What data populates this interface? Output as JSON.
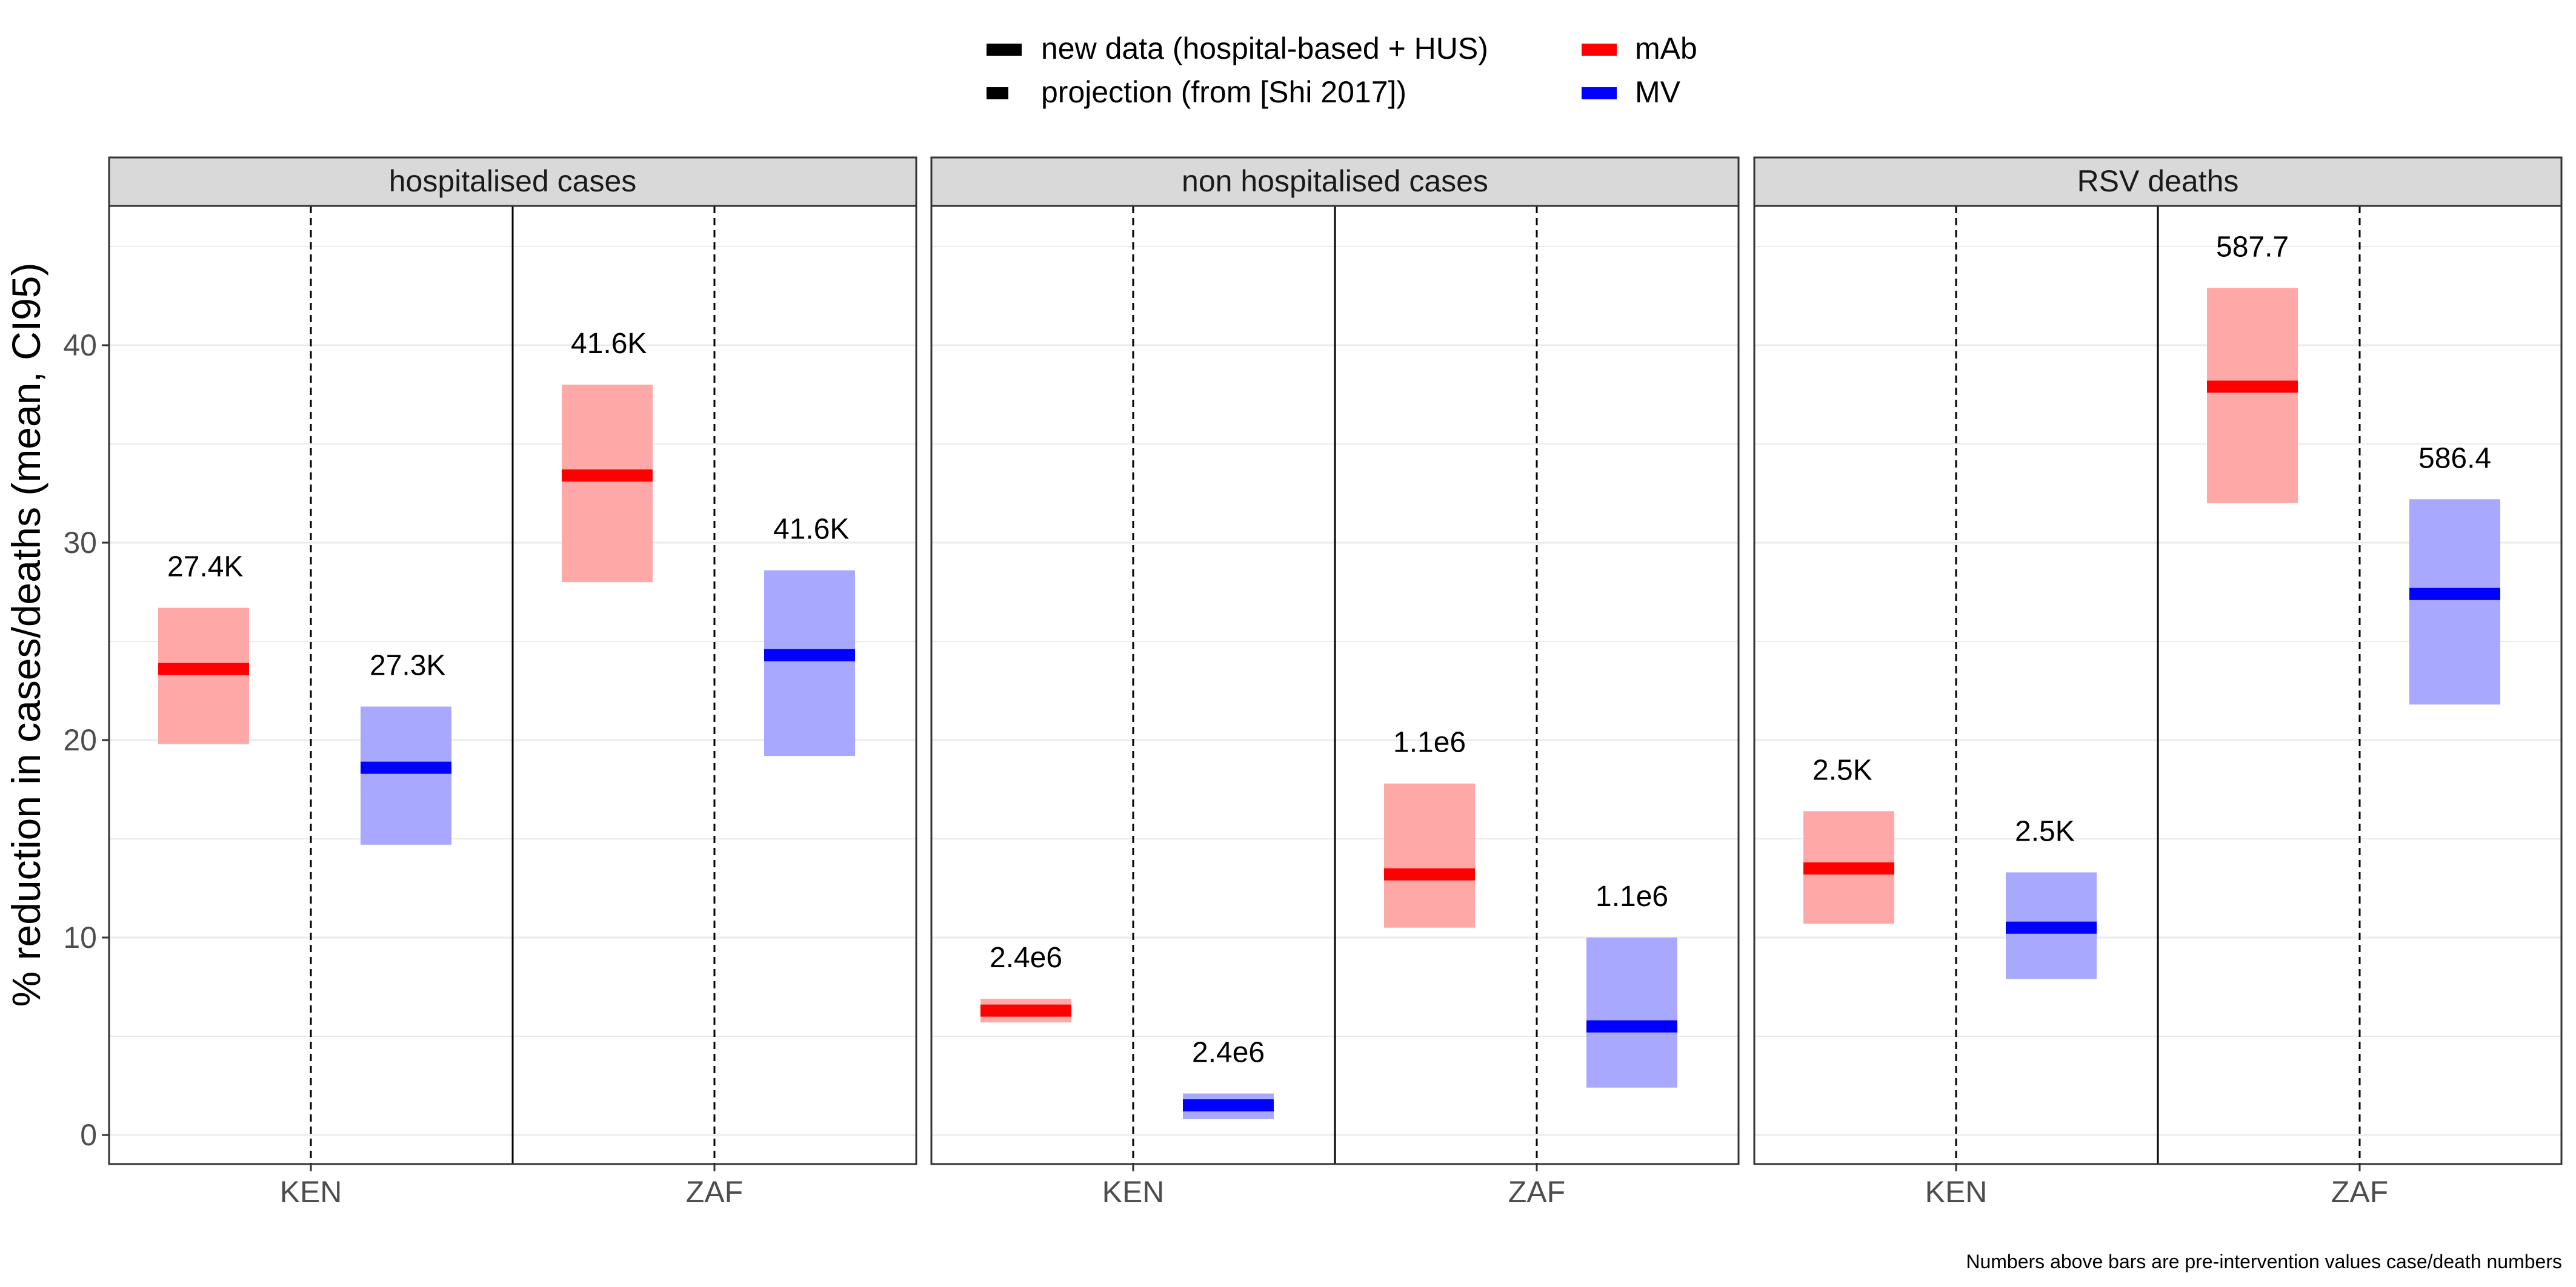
{
  "legend": {
    "entries": [
      {
        "label": "new data (hospital-based + HUS)",
        "swatch": "solid"
      },
      {
        "label": "projection (from [Shi 2017])",
        "swatch": "short"
      },
      {
        "label": "mAb",
        "color": "#ff0000"
      },
      {
        "label": "MV",
        "color": "#0000ff"
      }
    ]
  },
  "footnote": "Numbers above bars are pre-intervention values case/death numbers",
  "colors": {
    "mAb": "#ff0000",
    "mAb_band": "#ffa8a8",
    "MV": "#0000ff",
    "MV_band": "#a8a8ff",
    "panel_header": "#d9d9d9",
    "grid": "#ebebeb"
  },
  "chart_data": {
    "type": "crossbar",
    "ylabel": "% reduction in cases/deaths (mean, CI95)",
    "xlabel": "",
    "ylim": [
      -1.5,
      47.5
    ],
    "yticks": [
      0,
      10,
      20,
      30,
      40
    ],
    "grid": true,
    "categories": [
      "KEN",
      "ZAF"
    ],
    "series_names": [
      "mAb",
      "MV"
    ],
    "panels": [
      {
        "title": "hospitalised cases",
        "bars": [
          {
            "country": "KEN",
            "series": "mAb",
            "mean": 23.6,
            "low": 19.8,
            "high": 26.7,
            "label": "27.4K"
          },
          {
            "country": "KEN",
            "series": "MV",
            "mean": 18.6,
            "low": 14.7,
            "high": 21.7,
            "label": "27.3K"
          },
          {
            "country": "ZAF",
            "series": "mAb",
            "mean": 33.4,
            "low": 28.0,
            "high": 38.0,
            "label": "41.6K"
          },
          {
            "country": "ZAF",
            "series": "MV",
            "mean": 24.3,
            "low": 19.2,
            "high": 28.6,
            "label": "41.6K"
          }
        ]
      },
      {
        "title": "non hospitalised cases",
        "bars": [
          {
            "country": "KEN",
            "series": "mAb",
            "mean": 6.3,
            "low": 5.7,
            "high": 6.9,
            "label": "2.4e6"
          },
          {
            "country": "KEN",
            "series": "MV",
            "mean": 1.5,
            "low": 0.8,
            "high": 2.1,
            "label": "2.4e6"
          },
          {
            "country": "ZAF",
            "series": "mAb",
            "mean": 13.2,
            "low": 10.5,
            "high": 17.8,
            "label": "1.1e6"
          },
          {
            "country": "ZAF",
            "series": "MV",
            "mean": 5.5,
            "low": 2.4,
            "high": 10.0,
            "label": "1.1e6"
          }
        ]
      },
      {
        "title": "RSV deaths",
        "bars": [
          {
            "country": "KEN",
            "series": "mAb",
            "mean": 13.5,
            "low": 10.7,
            "high": 16.4,
            "label": "2.5K"
          },
          {
            "country": "KEN",
            "series": "MV",
            "mean": 10.5,
            "low": 7.9,
            "high": 13.3,
            "label": "2.5K"
          },
          {
            "country": "ZAF",
            "series": "mAb",
            "mean": 37.9,
            "low": 32.0,
            "high": 42.9,
            "label": "587.7"
          },
          {
            "country": "ZAF",
            "series": "MV",
            "mean": 27.4,
            "low": 21.8,
            "high": 32.2,
            "label": "586.4"
          }
        ]
      }
    ]
  }
}
